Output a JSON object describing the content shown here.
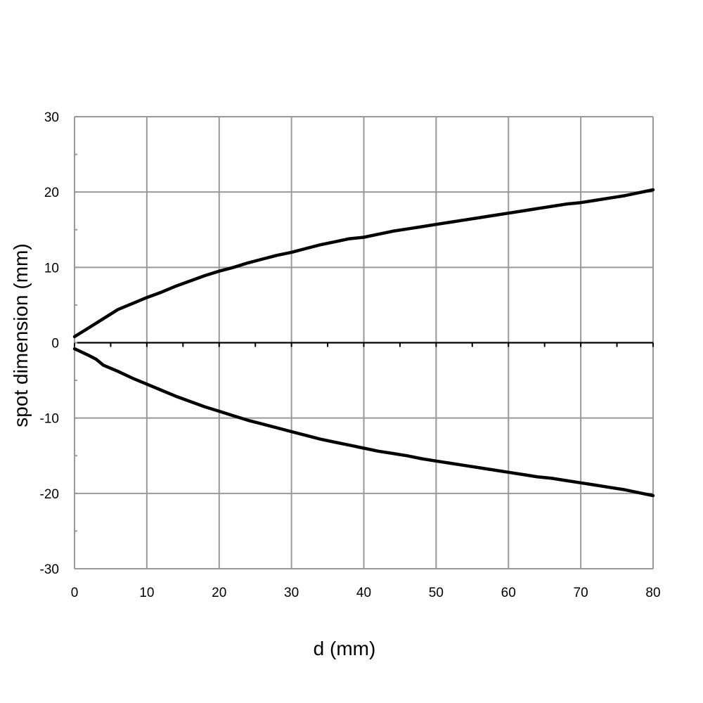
{
  "chart_data": {
    "type": "line",
    "title": "",
    "xlabel": "d (mm)",
    "ylabel": "spot dimension (mm)",
    "xlim": [
      0,
      80
    ],
    "ylim": [
      -30,
      30
    ],
    "x_ticks": [
      0,
      10,
      20,
      30,
      40,
      50,
      60,
      70,
      80
    ],
    "y_ticks": [
      30,
      20,
      10,
      0,
      -10,
      -20,
      -30
    ],
    "grid": true,
    "legend": "none",
    "line_color": "#000000",
    "grid_color": "#999999",
    "series": [
      {
        "x": [
          0,
          2,
          4,
          6,
          8,
          10,
          12,
          14,
          16,
          18,
          20,
          22,
          24,
          26,
          28,
          30,
          32,
          34,
          36,
          38,
          40,
          42,
          44,
          46,
          48,
          50,
          52,
          54,
          56,
          58,
          60,
          62,
          64,
          66,
          68,
          70,
          72,
          74,
          76,
          78,
          80
        ],
        "y": [
          0.8,
          2.0,
          3.2,
          4.4,
          5.2,
          6.0,
          6.7,
          7.5,
          8.2,
          8.9,
          9.5,
          10.0,
          10.6,
          11.1,
          11.6,
          12.0,
          12.5,
          13.0,
          13.4,
          13.8,
          14.0,
          14.4,
          14.8,
          15.1,
          15.4,
          15.7,
          16.0,
          16.3,
          16.6,
          16.9,
          17.2,
          17.5,
          17.8,
          18.1,
          18.4,
          18.6,
          18.9,
          19.2,
          19.5,
          19.9,
          20.3
        ]
      },
      {
        "x": [
          0,
          2,
          3,
          4,
          6,
          8,
          10,
          12,
          14,
          16,
          18,
          20,
          22,
          24,
          26,
          28,
          30,
          32,
          34,
          36,
          38,
          40,
          42,
          44,
          46,
          48,
          50,
          52,
          54,
          56,
          58,
          60,
          62,
          64,
          66,
          68,
          70,
          72,
          74,
          76,
          78,
          80
        ],
        "y": [
          -0.8,
          -1.7,
          -2.2,
          -3.0,
          -3.8,
          -4.7,
          -5.5,
          -6.3,
          -7.1,
          -7.8,
          -8.5,
          -9.1,
          -9.7,
          -10.3,
          -10.8,
          -11.3,
          -11.8,
          -12.3,
          -12.8,
          -13.2,
          -13.6,
          -14.0,
          -14.4,
          -14.7,
          -15.0,
          -15.4,
          -15.7,
          -16.0,
          -16.3,
          -16.6,
          -16.9,
          -17.2,
          -17.5,
          -17.8,
          -18.0,
          -18.3,
          -18.6,
          -18.9,
          -19.2,
          -19.5,
          -19.9,
          -20.3
        ]
      }
    ]
  }
}
